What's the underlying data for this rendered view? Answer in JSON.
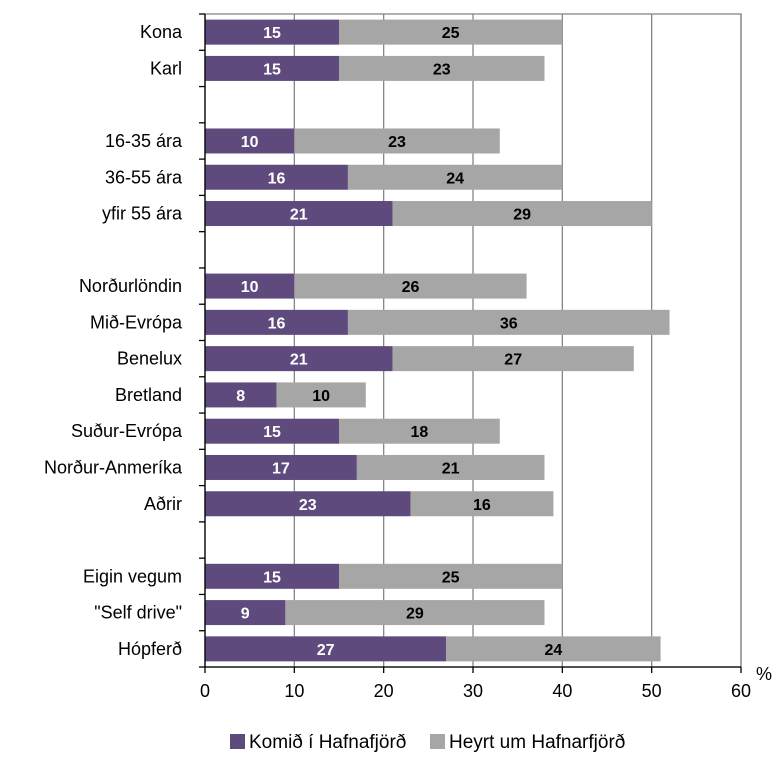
{
  "chart_data": {
    "type": "bar",
    "orientation": "horizontal",
    "stacked": true,
    "categories": [
      "Kona",
      "Karl",
      "",
      "16-35 ára",
      "36-55 ára",
      "yfir 55 ára",
      "",
      "Norðurlöndin",
      "Mið-Evrópa",
      "Benelux",
      "Bretland",
      "Suður-Evrópa",
      "Norður-Anmeríka",
      "Aðrir",
      "",
      "Eigin vegum",
      "\"Self drive\"",
      "Hópferð"
    ],
    "series": [
      {
        "name": "Komið í Hafnafjörð",
        "color": "#5e4a7d",
        "values": [
          15,
          15,
          null,
          10,
          16,
          21,
          null,
          10,
          16,
          21,
          8,
          15,
          17,
          23,
          null,
          15,
          9,
          27
        ]
      },
      {
        "name": "Heyrt um Hafnarfjörð",
        "color": "#a6a6a6",
        "values": [
          25,
          23,
          null,
          23,
          24,
          29,
          null,
          26,
          36,
          27,
          10,
          18,
          21,
          16,
          null,
          25,
          29,
          24
        ]
      }
    ],
    "xlim": [
      0,
      60
    ],
    "xticks": [
      0,
      10,
      20,
      30,
      40,
      50,
      60
    ],
    "xunit": "%",
    "grid": "vertical",
    "legend": "bottom"
  }
}
